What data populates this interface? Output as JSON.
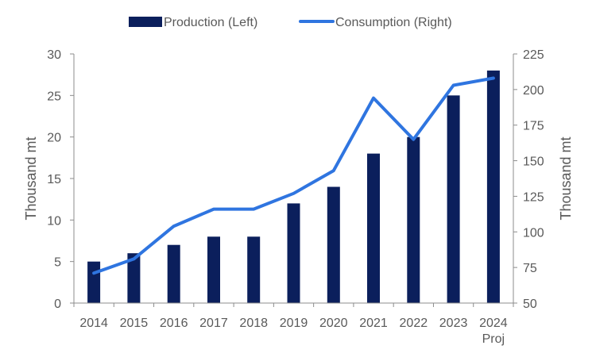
{
  "chart_data": {
    "type": "bar+line",
    "title": "",
    "categories": [
      "2014",
      "2015",
      "2016",
      "2017",
      "2018",
      "2019",
      "2020",
      "2021",
      "2022",
      "2023",
      "2024\nProj"
    ],
    "series": [
      {
        "name": "Production (Left)",
        "type": "bar",
        "axis": "left",
        "color": "#0b1f5c",
        "values": [
          5,
          6,
          7,
          8,
          8,
          12,
          14,
          18,
          20,
          25,
          28
        ]
      },
      {
        "name": "Consumption (Right)",
        "type": "line",
        "axis": "right",
        "color": "#2f75e0",
        "values": [
          71,
          81,
          104,
          116,
          116,
          127,
          143,
          194,
          165,
          203,
          208
        ]
      }
    ],
    "ylabel_left": "Thousand mt",
    "ylabel_right": "Thousand mt",
    "ylim_left": [
      0,
      30
    ],
    "yticks_left": [
      0,
      5,
      10,
      15,
      20,
      25,
      30
    ],
    "ylim_right": [
      50,
      225
    ],
    "yticks_right": [
      50,
      75,
      100,
      125,
      150,
      175,
      200,
      225
    ],
    "grid": false,
    "legend": "top-center"
  }
}
